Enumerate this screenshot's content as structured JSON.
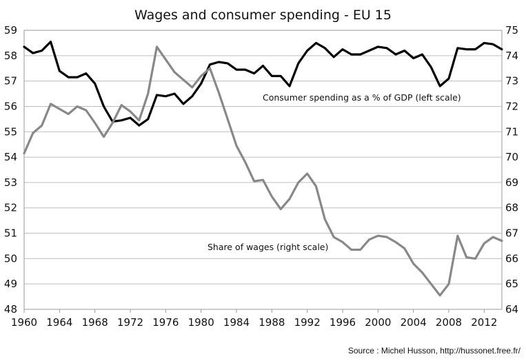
{
  "chart_data": {
    "type": "line",
    "title": "Wages and consumer spending - EU 15",
    "source": "Source : Michel Husson, http://hussonet.free.fr/",
    "x_ticks": [
      "1960",
      "1964",
      "1968",
      "1972",
      "1976",
      "1980",
      "1984",
      "1988",
      "1992",
      "1996",
      "2000",
      "2004",
      "2008",
      "2012"
    ],
    "xlim": [
      1960,
      2014
    ],
    "y_left": {
      "ticks": [
        "48",
        "49",
        "50",
        "51",
        "52",
        "53",
        "54",
        "55",
        "56",
        "57",
        "58",
        "59"
      ],
      "lim": [
        48,
        59
      ]
    },
    "y_right": {
      "ticks": [
        "64",
        "65",
        "66",
        "67",
        "68",
        "69",
        "70",
        "71",
        "72",
        "73",
        "74",
        "75"
      ],
      "lim": [
        64,
        75
      ]
    },
    "grid": "horizontal",
    "x": [
      1960,
      1961,
      1962,
      1963,
      1964,
      1965,
      1966,
      1967,
      1968,
      1969,
      1970,
      1971,
      1972,
      1973,
      1974,
      1975,
      1976,
      1977,
      1978,
      1979,
      1980,
      1981,
      1982,
      1983,
      1984,
      1985,
      1986,
      1987,
      1988,
      1989,
      1990,
      1991,
      1992,
      1993,
      1994,
      1995,
      1996,
      1997,
      1998,
      1999,
      2000,
      2001,
      2002,
      2003,
      2004,
      2005,
      2006,
      2007,
      2008,
      2009,
      2010,
      2011,
      2012,
      2013,
      2014
    ],
    "series": [
      {
        "name": "Consumer spending as a % of GDP (left scale)",
        "axis": "left",
        "color": "#000000",
        "values": [
          58.35,
          58.1,
          58.2,
          58.55,
          57.4,
          57.15,
          57.15,
          57.3,
          56.9,
          56.0,
          55.4,
          55.45,
          55.55,
          55.25,
          55.5,
          56.45,
          56.4,
          56.5,
          56.1,
          56.4,
          56.9,
          57.65,
          57.75,
          57.7,
          57.45,
          57.45,
          57.3,
          57.6,
          57.2,
          57.2,
          56.8,
          57.7,
          58.2,
          58.5,
          58.3,
          57.95,
          58.25,
          58.05,
          58.05,
          58.2,
          58.35,
          58.3,
          58.05,
          58.2,
          57.9,
          58.05,
          57.55,
          56.8,
          57.1,
          58.3,
          58.25,
          58.25,
          58.5,
          58.45,
          58.25
        ]
      },
      {
        "name": "Share of wages (right scale)",
        "axis": "right",
        "color": "#888888",
        "values": [
          70.15,
          70.95,
          71.25,
          72.1,
          71.9,
          71.7,
          72.0,
          71.85,
          71.35,
          70.8,
          71.35,
          72.05,
          71.8,
          71.45,
          72.5,
          74.35,
          73.85,
          73.35,
          73.05,
          72.75,
          73.2,
          73.5,
          72.55,
          71.5,
          70.45,
          69.8,
          69.05,
          69.1,
          68.45,
          67.95,
          68.35,
          69.0,
          69.35,
          68.85,
          67.55,
          66.85,
          66.65,
          66.35,
          66.35,
          66.75,
          66.9,
          66.85,
          66.65,
          66.4,
          65.8,
          65.45,
          65.0,
          64.55,
          65.0,
          66.9,
          66.05,
          66.0,
          66.6,
          66.85,
          66.7
        ]
      }
    ],
    "annotations": [
      {
        "text": "Consumer spending as a % of GDP (left scale)",
        "series": 0
      },
      {
        "text": "Share of wages (right scale)",
        "series": 1
      }
    ]
  }
}
